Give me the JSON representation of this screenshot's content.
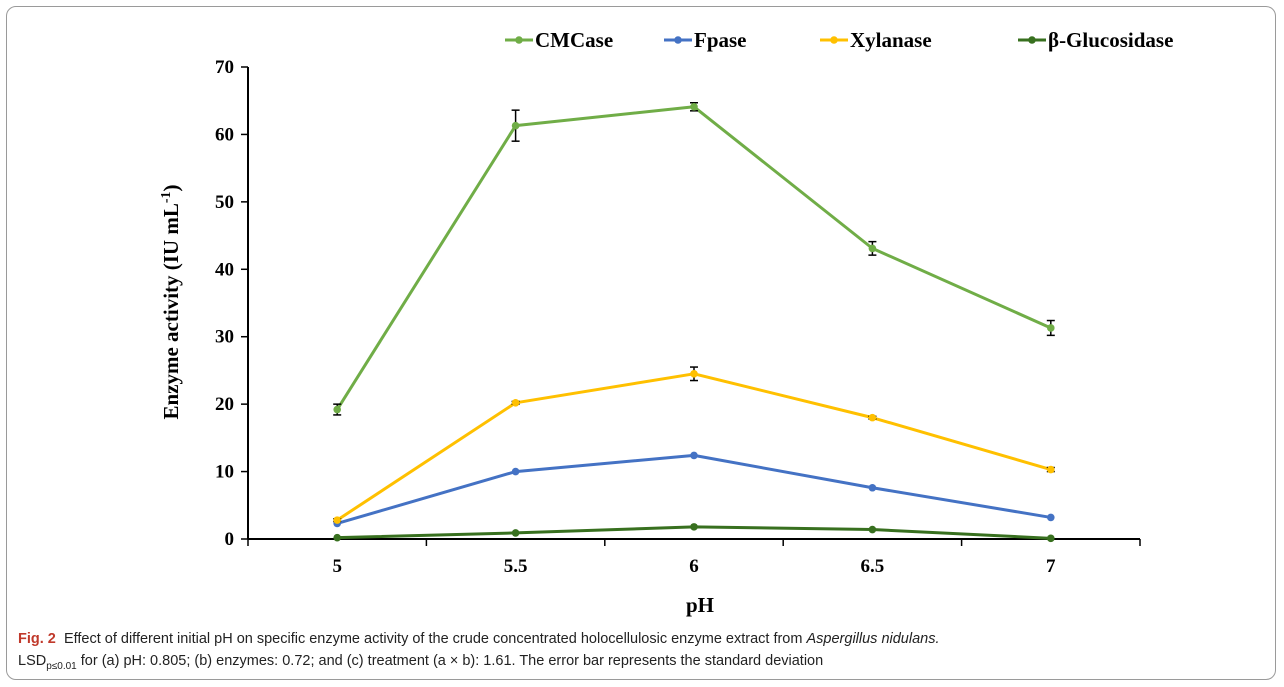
{
  "chart_data": {
    "type": "line",
    "title": "",
    "xlabel": "pH",
    "ylabel": "Enzyme activity (IU mL",
    "ylabel_sup": "-1",
    "ylabel_close": ")",
    "x": [
      5,
      5.5,
      6,
      6.5,
      7
    ],
    "x_tick_labels": [
      "5",
      "5.5",
      "6",
      "6.5",
      "7"
    ],
    "ylim": [
      0,
      70
    ],
    "y_ticks": [
      0,
      10,
      20,
      30,
      40,
      50,
      60,
      70
    ],
    "y_tick_labels": [
      "0",
      "10",
      "20",
      "30",
      "40",
      "50",
      "60",
      "70"
    ],
    "grid": false,
    "legend_position": "top",
    "error_bars": "standard deviation",
    "series": [
      {
        "name": "CMCase",
        "color": "#70ad47",
        "values": [
          19.2,
          61.3,
          64.1,
          43.1,
          31.3
        ],
        "error": [
          0.8,
          2.3,
          0.6,
          1.0,
          1.1
        ]
      },
      {
        "name": "Fpase",
        "color": "#4472c4",
        "values": [
          2.3,
          10.0,
          12.4,
          7.6,
          3.2
        ],
        "error": [
          0,
          0,
          0,
          0,
          0
        ]
      },
      {
        "name": "Xylanase",
        "color": "#ffc000",
        "values": [
          2.8,
          20.2,
          24.5,
          18.0,
          10.3
        ],
        "error": [
          0.2,
          0.2,
          1.0,
          0.2,
          0.3
        ]
      },
      {
        "name": "β-Glucosidase",
        "color": "#38701f",
        "values": [
          0.2,
          0.9,
          1.8,
          1.4,
          0.1
        ],
        "error": [
          0,
          0,
          0,
          0,
          0
        ]
      }
    ]
  },
  "caption": {
    "fig_label": "Fig. 2",
    "text_1": "Effect of different initial pH on specific enzyme activity of the crude concentrated holocellulosic enzyme extract from",
    "organism": "Aspergillus nidulans.",
    "lsd_prefix": "LSD",
    "lsd_subscript": "p≤0.01",
    "text_2": "for (a) pH: 0.805; (b) enzymes: 0.72; and (c) treatment (a × b): 1.61. The error bar represents the standard deviation"
  }
}
